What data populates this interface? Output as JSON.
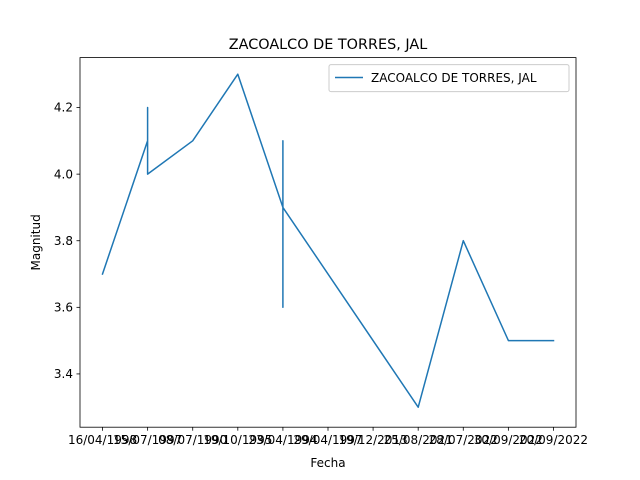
{
  "chart_data": {
    "type": "line",
    "title": "ZACOALCO DE TORRES, JAL",
    "xlabel": "Fecha",
    "ylabel": "Magnitud",
    "x_tick_labels": [
      "16/04/1998",
      "15/07/1997",
      "08/07/1990",
      "19/10/1995",
      "23/04/1994",
      "29/04/1997",
      "19/12/2013",
      "25/08/2021",
      "28/07/2022",
      "30/09/2022",
      "20/09/2022"
    ],
    "y_ticks": [
      3.4,
      3.6,
      3.8,
      4.0,
      4.2
    ],
    "ylim": [
      3.24,
      4.35
    ],
    "grid": false,
    "legend_position": "upper right",
    "series": [
      {
        "name": "ZACOALCO DE TORRES, JAL",
        "color": "#1f77b4",
        "points": [
          {
            "x": 0,
            "y": 3.7
          },
          {
            "x": 1,
            "y": 4.1
          },
          {
            "x": 1,
            "y": 4.2
          },
          {
            "x": 1,
            "y": 4.0
          },
          {
            "x": 2,
            "y": 4.1
          },
          {
            "x": 3,
            "y": 4.3
          },
          {
            "x": 4,
            "y": 3.9
          },
          {
            "x": 4,
            "y": 4.1
          },
          {
            "x": 4,
            "y": 3.6
          },
          {
            "x": 4,
            "y": 3.9
          },
          {
            "x": 7,
            "y": 3.3
          },
          {
            "x": 8,
            "y": 3.8
          },
          {
            "x": 9,
            "y": 3.5
          },
          {
            "x": 10,
            "y": 3.5
          }
        ]
      }
    ]
  }
}
